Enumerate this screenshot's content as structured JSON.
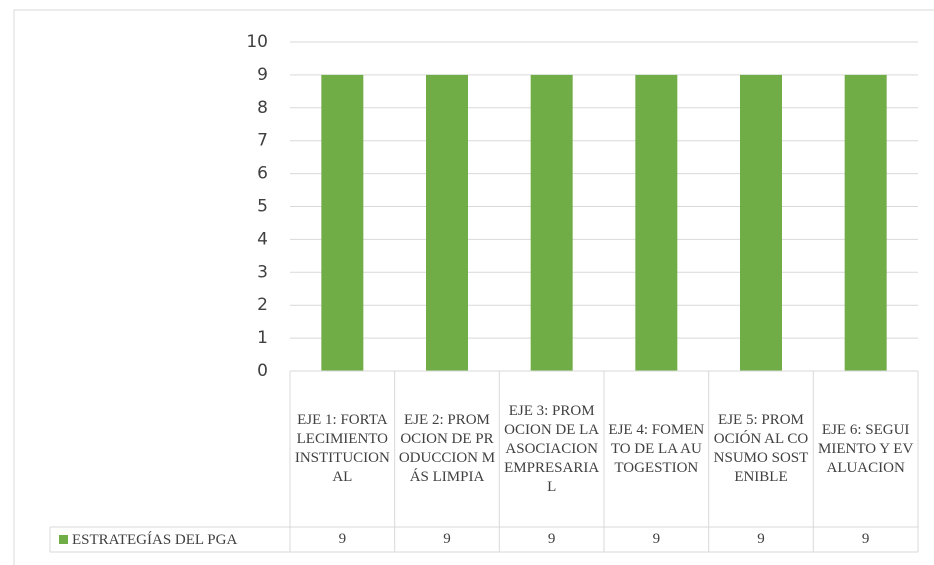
{
  "chart_data": {
    "type": "bar",
    "categories": [
      "EJE 1: FORTALECIMIENTO INSTITUCIONAL",
      "EJE 2: PROMOCION DE PRODUCCION MÁS LIMPIA",
      "EJE 3: PROMOCION DE LA ASOCIACION EMPRESARIAL",
      "EJE 4: FOMENTO DE LA AUTOGESTION",
      "EJE 5: PROMOCIÓN AL CONSUMO SOSTENIBLE",
      "EJE 6: SEGUIMIENTO Y EVALUACION"
    ],
    "series": [
      {
        "name": "ESTRATEGÍAS DEL PGA",
        "color": "#70ad47",
        "values": [
          9,
          9,
          9,
          9,
          9,
          9
        ]
      }
    ],
    "ylim": [
      0,
      10
    ],
    "yticks": [
      0,
      1,
      2,
      3,
      4,
      5,
      6,
      7,
      8,
      9,
      10
    ],
    "grid": true,
    "data_table": true
  }
}
